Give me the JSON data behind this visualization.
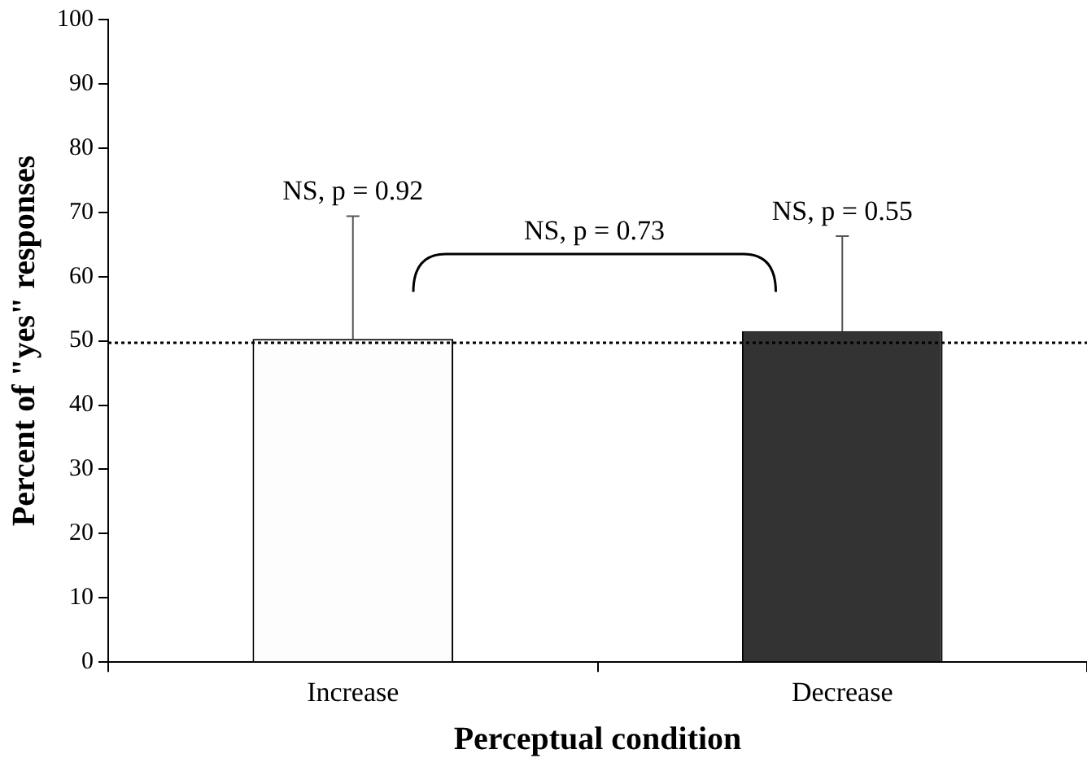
{
  "chart_data": {
    "type": "bar",
    "xlabel": "Perceptual condition",
    "ylabel": "Percent of \"yes\" responses",
    "categories": [
      "Increase",
      "Decrease"
    ],
    "values": [
      50.3,
      51.5
    ],
    "colors": [
      "#fdfdfd",
      "#333333"
    ],
    "errors": [
      [
        50.3,
        69.4
      ],
      [
        51.5,
        66.3
      ]
    ],
    "ylim": [
      0,
      100
    ],
    "yticks": [
      0,
      10,
      20,
      30,
      40,
      50,
      60,
      70,
      80,
      90,
      100
    ],
    "ref_lines": [
      {
        "axis": "y",
        "value": 49.7,
        "line_style": "dotted",
        "color": "#000000"
      }
    ],
    "annotations": [
      {
        "text": "NS, p = 0.92",
        "x": "Increase",
        "y": 69.4
      },
      {
        "text": "NS, p = 0.55",
        "x": "Decrease",
        "y": 66.3
      },
      "NS, p = 0.73"
    ],
    "grid": false,
    "legend": false
  }
}
